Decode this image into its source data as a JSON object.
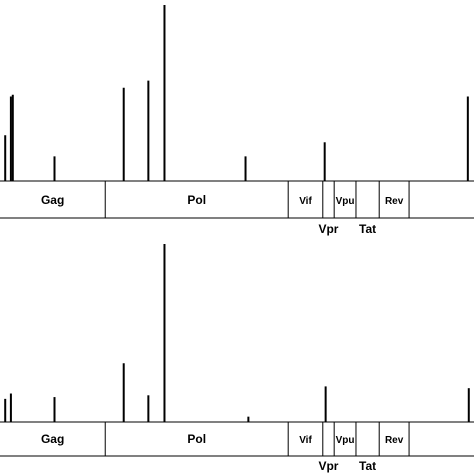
{
  "chart_data": [
    {
      "type": "bar",
      "panel": "top",
      "title": "",
      "xlabel": "",
      "ylabel": "",
      "note": "Relative peak heights, y in units of panel maximum (1.0 = tallest peak); x in genome position relative to visible span (0-1).",
      "x": [
        0.011,
        0.023,
        0.027,
        0.115,
        0.261,
        0.313,
        0.347,
        0.518,
        0.685,
        0.987
      ],
      "values": [
        0.26,
        0.48,
        0.49,
        0.14,
        0.53,
        0.57,
        1.0,
        0.14,
        0.22,
        0.48
      ],
      "genes": [
        {
          "label": "Gag",
          "start": 0.0,
          "end": 0.222,
          "row": "inside"
        },
        {
          "label": "Pol",
          "start": 0.222,
          "end": 0.608,
          "row": "inside"
        },
        {
          "label": "Vif",
          "start": 0.608,
          "end": 0.681,
          "row": "inside"
        },
        {
          "label": "Vpr",
          "start": 0.681,
          "end": 0.705,
          "row": "below"
        },
        {
          "label": "Vpu",
          "start": 0.705,
          "end": 0.751,
          "row": "inside"
        },
        {
          "label": "Tat",
          "start": 0.751,
          "end": 0.8,
          "row": "below"
        },
        {
          "label": "Rev",
          "start": 0.8,
          "end": 0.863,
          "row": "inside"
        },
        {
          "label": "",
          "start": 0.863,
          "end": 1.0,
          "row": "inside"
        }
      ]
    },
    {
      "type": "bar",
      "panel": "bottom",
      "title": "",
      "xlabel": "",
      "ylabel": "",
      "x": [
        0.011,
        0.023,
        0.115,
        0.261,
        0.313,
        0.347,
        0.524,
        0.687,
        0.989
      ],
      "values": [
        0.13,
        0.16,
        0.14,
        0.33,
        0.15,
        1.0,
        0.03,
        0.2,
        0.19
      ],
      "genes": [
        {
          "label": "Gag",
          "start": 0.0,
          "end": 0.222,
          "row": "inside"
        },
        {
          "label": "Pol",
          "start": 0.222,
          "end": 0.608,
          "row": "inside"
        },
        {
          "label": "Vif",
          "start": 0.608,
          "end": 0.681,
          "row": "inside"
        },
        {
          "label": "Vpr",
          "start": 0.681,
          "end": 0.705,
          "row": "below"
        },
        {
          "label": "Vpu",
          "start": 0.705,
          "end": 0.751,
          "row": "inside"
        },
        {
          "label": "Tat",
          "start": 0.751,
          "end": 0.8,
          "row": "below"
        },
        {
          "label": "Rev",
          "start": 0.8,
          "end": 0.863,
          "row": "inside"
        },
        {
          "label": "",
          "start": 0.863,
          "end": 1.0,
          "row": "inside"
        }
      ]
    }
  ]
}
